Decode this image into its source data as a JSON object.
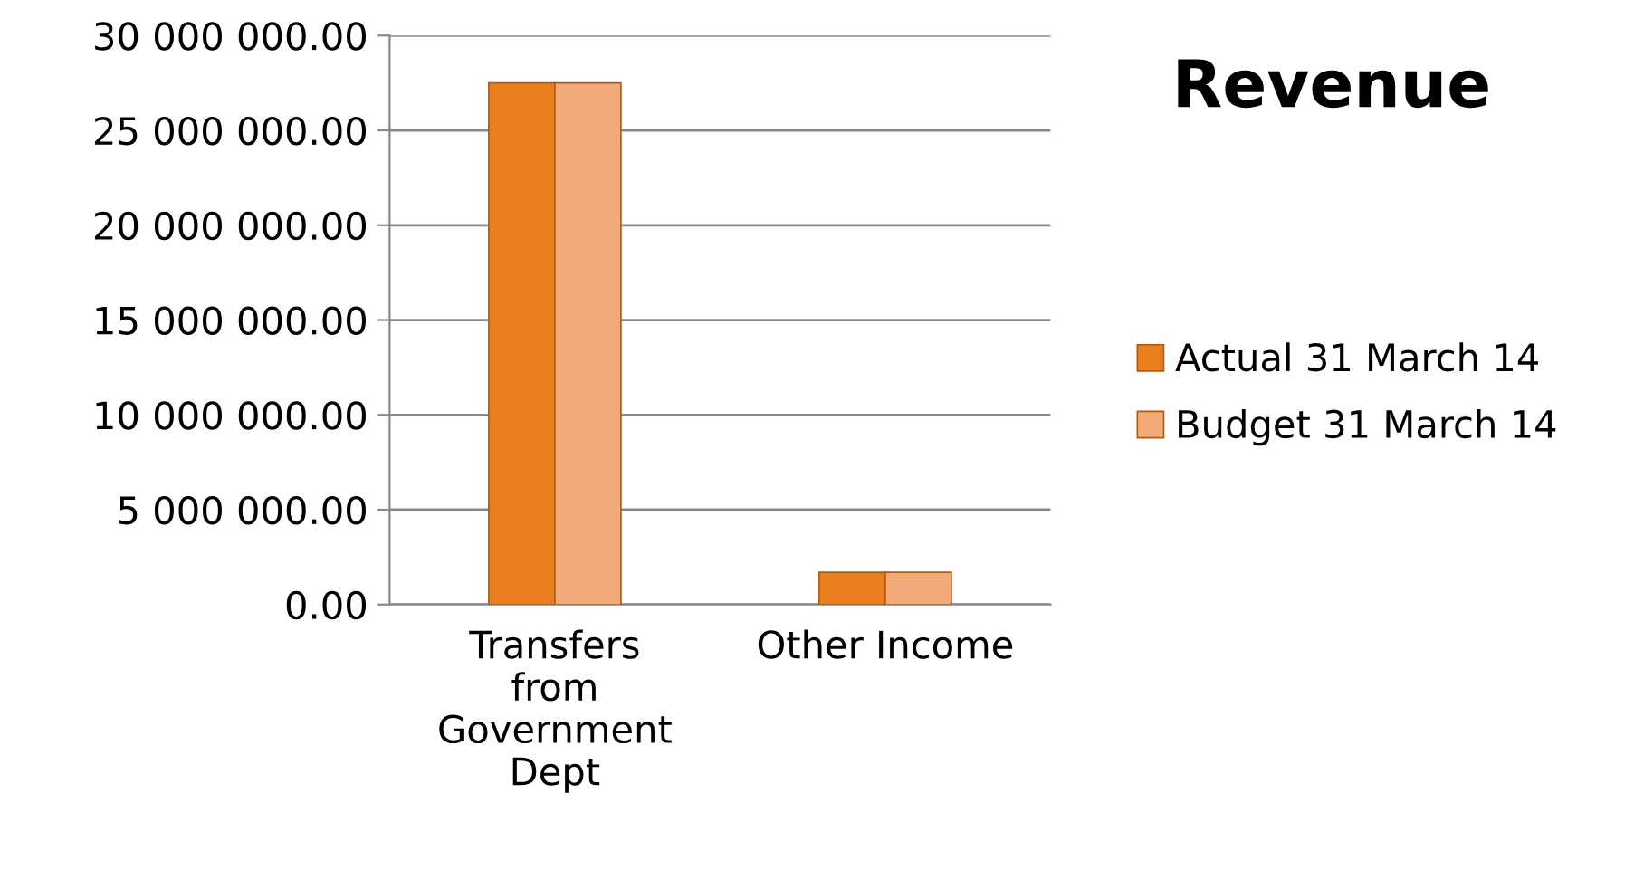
{
  "chart_data": {
    "type": "bar",
    "title": "Revenue",
    "categories": [
      "Transfers\nfrom\nGovernment\nDept",
      "Other Income"
    ],
    "series": [
      {
        "name": "Actual 31 March 14",
        "color": "#e87e1e",
        "values": [
          27500000,
          1700000
        ]
      },
      {
        "name": "Budget 31 March 14",
        "color": "#f4a978",
        "values": [
          27500000,
          1700000
        ]
      }
    ],
    "ylim": [
      0,
      30000000
    ],
    "yticks": [
      {
        "value": 0,
        "label": "0.00"
      },
      {
        "value": 5000000,
        "label": "5 000 000.00"
      },
      {
        "value": 10000000,
        "label": "10 000 000.00"
      },
      {
        "value": 15000000,
        "label": "15 000 000.00"
      },
      {
        "value": 20000000,
        "label": "20 000 000.00"
      },
      {
        "value": 25000000,
        "label": "25 000 000.00"
      },
      {
        "value": 30000000,
        "label": "30 000 000.00"
      }
    ],
    "grid": "y",
    "legend": "right"
  }
}
